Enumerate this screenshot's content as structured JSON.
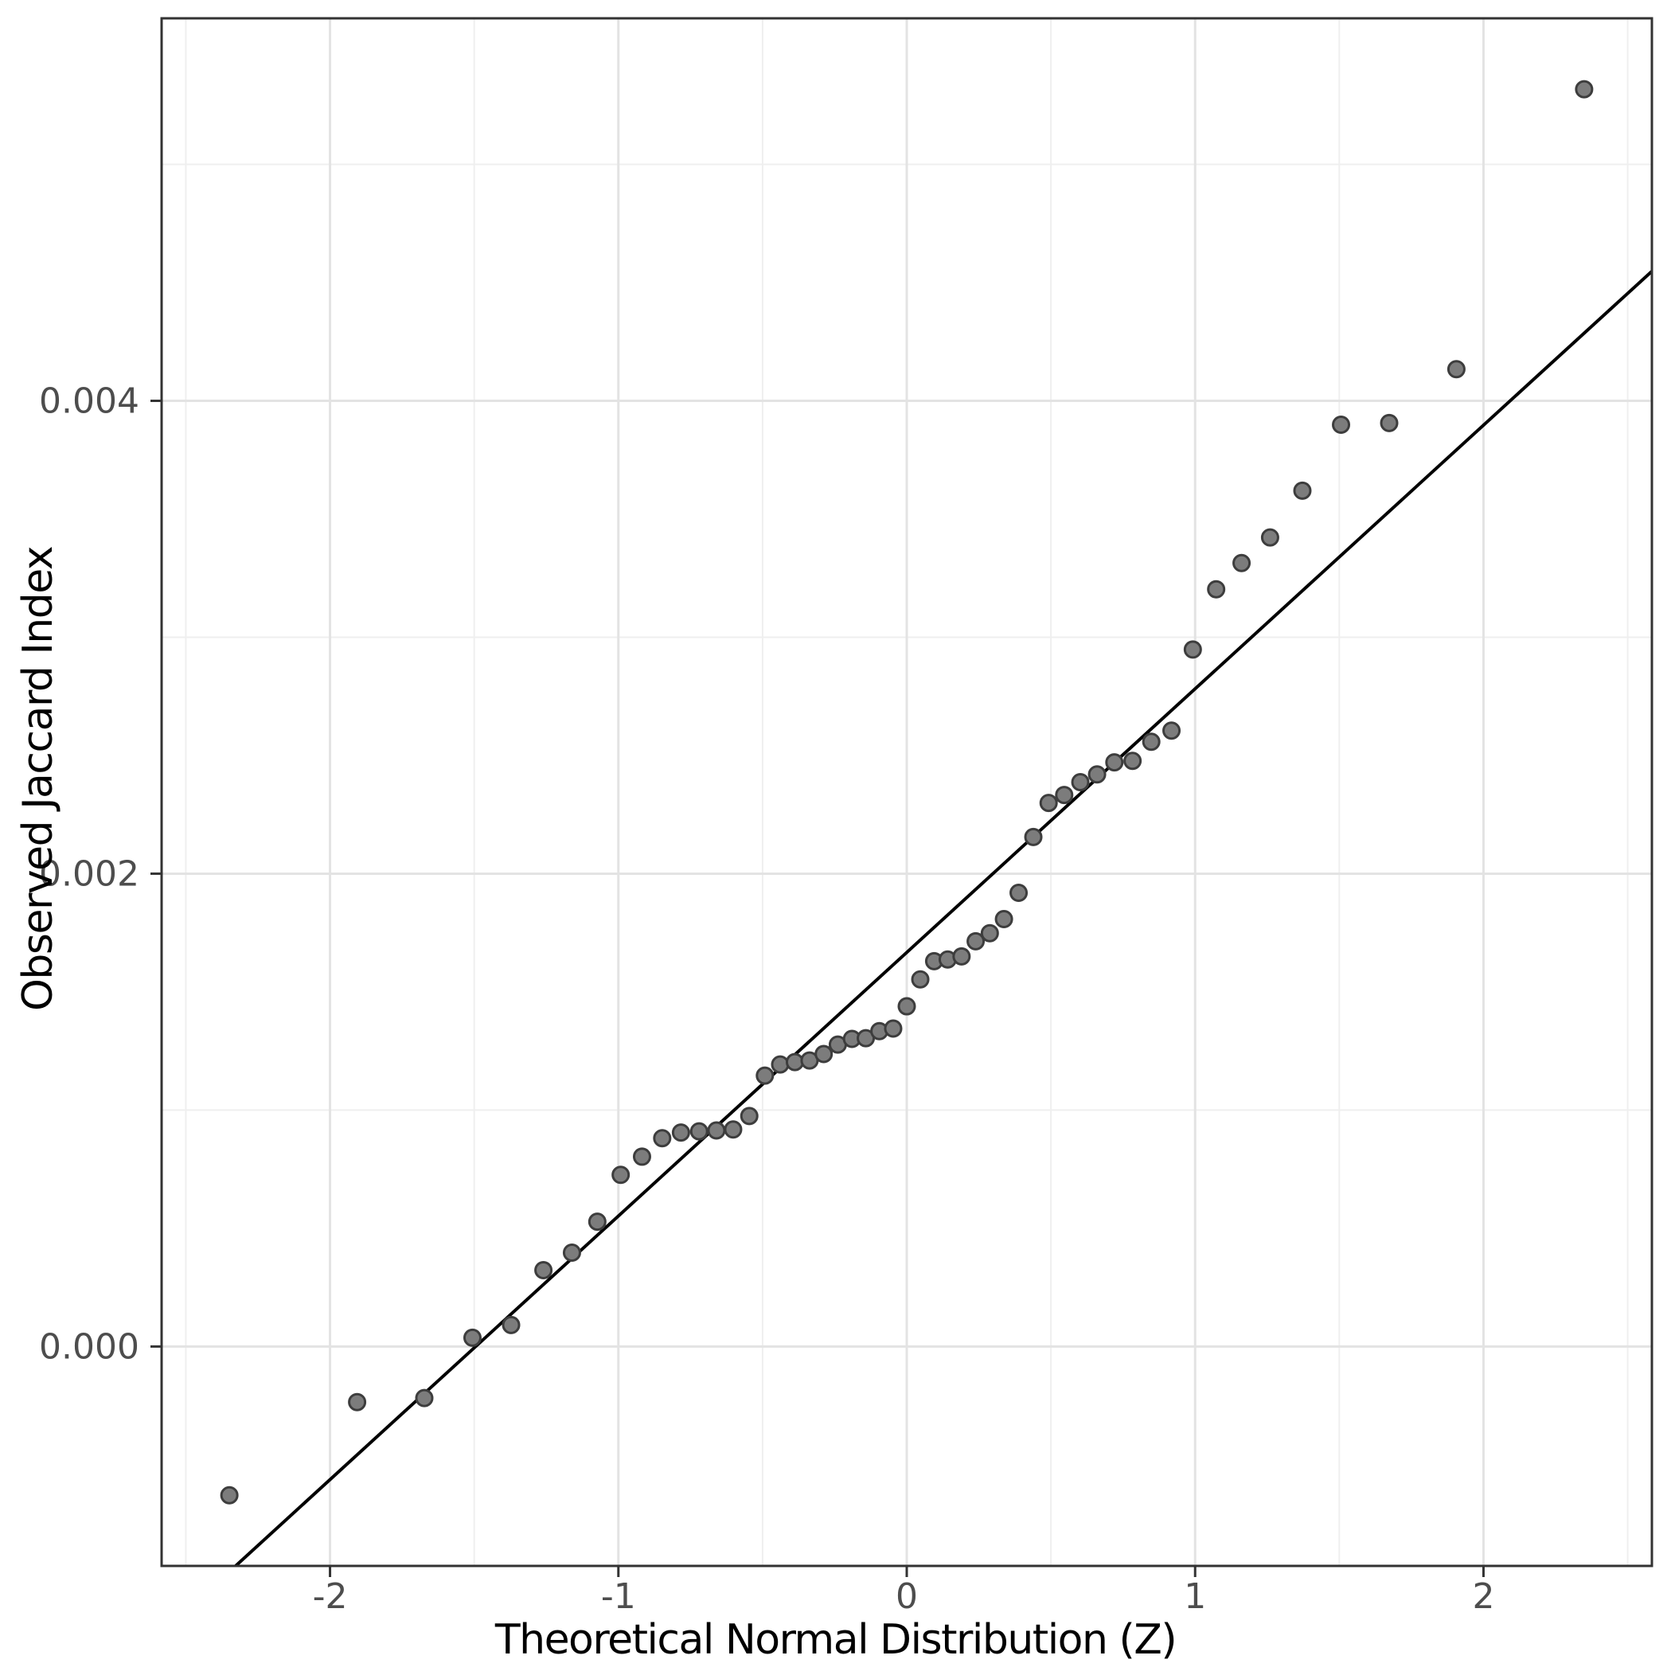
{
  "chart_data": {
    "type": "scatter",
    "title": "",
    "xlabel": "Theoretical Normal Distribution (Z)",
    "ylabel": "Observed Jaccard Index",
    "xlim": [
      -2.584,
      2.584
    ],
    "ylim": [
      -0.000928,
      0.005618
    ],
    "grid": "on",
    "legend": "none",
    "x_major_ticks": [
      -2,
      -1,
      0,
      1,
      2
    ],
    "x_tick_labels": [
      "-2",
      "-1",
      "0",
      "1",
      "2"
    ],
    "x_minor_ticks": [
      -2.5,
      -1.5,
      -0.5,
      0.5,
      1.5,
      2.5
    ],
    "y_major_ticks": [
      0.0,
      0.002,
      0.004
    ],
    "y_tick_labels": [
      "0.000",
      "0.002",
      "0.004"
    ],
    "y_minor_ticks": [
      0.001,
      0.003,
      0.005
    ],
    "qq_line": {
      "intercept": 0.001667,
      "slope": 0.001115
    },
    "points": [
      [
        -2.349,
        -0.000629
      ],
      [
        -1.906,
        -0.000235
      ],
      [
        -1.673,
        -0.000218
      ],
      [
        -1.506,
        3.7e-05
      ],
      [
        -1.372,
        9.1e-05
      ],
      [
        -1.26,
        0.000323
      ],
      [
        -1.161,
        0.000397
      ],
      [
        -1.073,
        0.000528
      ],
      [
        -0.992,
        0.000726
      ],
      [
        -0.918,
        0.000803
      ],
      [
        -0.848,
        0.000881
      ],
      [
        -0.783,
        0.000905
      ],
      [
        -0.72,
        0.00091
      ],
      [
        -0.66,
        0.000914
      ],
      [
        -0.602,
        0.000918
      ],
      [
        -0.546,
        0.000975
      ],
      [
        -0.492,
        0.001146
      ],
      [
        -0.439,
        0.001193
      ],
      [
        -0.388,
        0.001203
      ],
      [
        -0.337,
        0.00121
      ],
      [
        -0.288,
        0.001237
      ],
      [
        -0.239,
        0.001277
      ],
      [
        -0.19,
        0.001301
      ],
      [
        -0.142,
        0.001304
      ],
      [
        -0.095,
        0.001334
      ],
      [
        -0.047,
        0.001345
      ],
      [
        0.0,
        0.001439
      ],
      [
        0.047,
        0.001553
      ],
      [
        0.095,
        0.00163
      ],
      [
        0.142,
        0.001637
      ],
      [
        0.19,
        0.00165
      ],
      [
        0.239,
        0.001714
      ],
      [
        0.288,
        0.001748
      ],
      [
        0.337,
        0.001808
      ],
      [
        0.388,
        0.001919
      ],
      [
        0.439,
        0.002155
      ],
      [
        0.492,
        0.002299
      ],
      [
        0.546,
        0.002333
      ],
      [
        0.602,
        0.002387
      ],
      [
        0.66,
        0.00242
      ],
      [
        0.72,
        0.002471
      ],
      [
        0.783,
        0.002477
      ],
      [
        0.848,
        0.002558
      ],
      [
        0.918,
        0.002605
      ],
      [
        0.992,
        0.002948
      ],
      [
        1.073,
        0.003203
      ],
      [
        1.161,
        0.003314
      ],
      [
        1.26,
        0.003422
      ],
      [
        1.372,
        0.00362
      ],
      [
        1.506,
        0.003899
      ],
      [
        1.673,
        0.003906
      ],
      [
        1.906,
        0.004134
      ],
      [
        2.349,
        0.005318
      ]
    ],
    "colors": {
      "point_fill": "#7c7c7c",
      "point_stroke": "#3d3d3d",
      "line": "#000000",
      "grid_major": "#e3e3e3",
      "grid_minor": "#efefef",
      "panel_border": "#333333",
      "tick_mark": "#333333",
      "tick_label": "#4d4d4d",
      "axis_title": "#000000",
      "background": "#ffffff"
    },
    "point_radius": 10,
    "point_stroke_width": 3,
    "line_width": 4
  }
}
